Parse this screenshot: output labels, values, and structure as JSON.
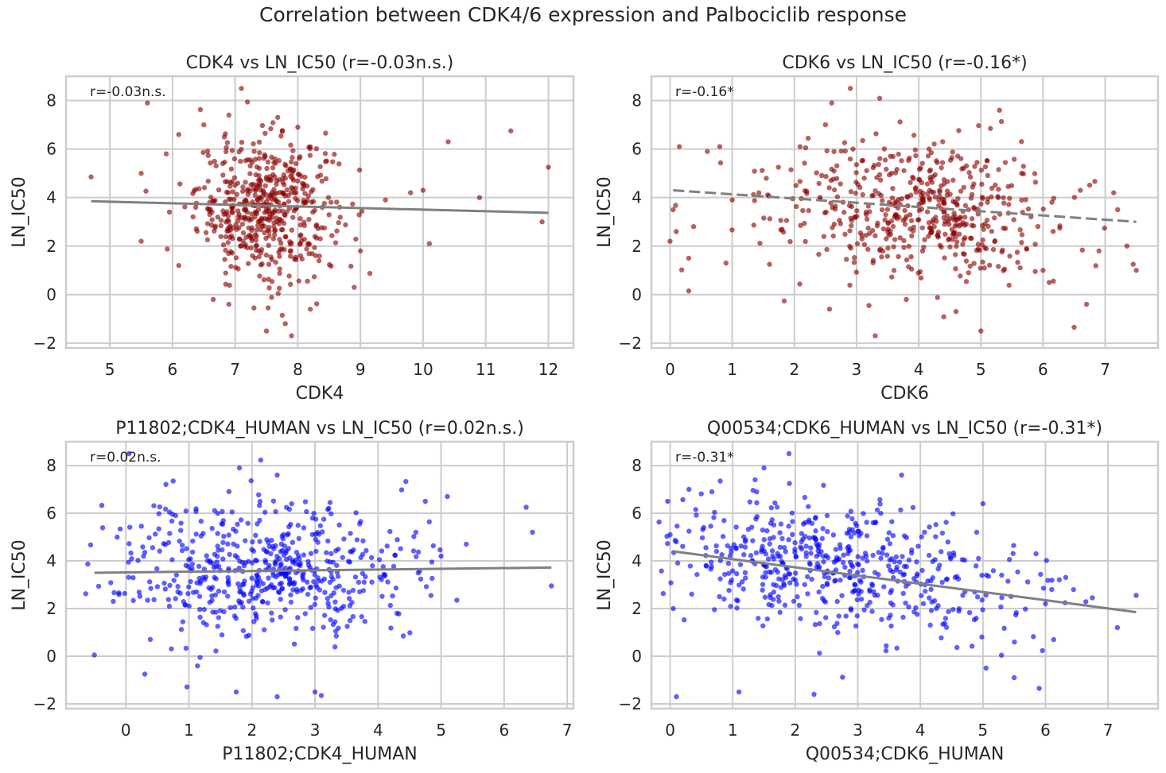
{
  "figure": {
    "suptitle": "Correlation between CDK4/6 expression and Palbociclib response"
  },
  "chart_data": [
    {
      "type": "scatter",
      "title": "CDK4 vs LN_IC50 (r=-0.03n.s.)",
      "annotation": "r=-0.03n.s.",
      "xlabel": "CDK4",
      "ylabel": "LN_IC50",
      "xlim": [
        4.3,
        12.4
      ],
      "ylim": [
        -2.2,
        9.0
      ],
      "xticks": [
        5,
        6,
        7,
        8,
        9,
        10,
        11,
        12
      ],
      "yticks": [
        -2,
        0,
        2,
        4,
        6,
        8
      ],
      "grid": true,
      "point_color": "#8b0000",
      "regression": {
        "x": [
          4.7,
          12.0
        ],
        "y": [
          3.85,
          3.37
        ],
        "color": "#808080"
      },
      "cloud": {
        "cx": 7.5,
        "cy": 3.6,
        "sx": 0.55,
        "sy": 1.45,
        "n": 520,
        "slope": -0.07
      },
      "points": [
        [
          4.7,
          4.85
        ],
        [
          5.6,
          7.9
        ],
        [
          5.5,
          2.2
        ],
        [
          5.5,
          5.0
        ],
        [
          5.9,
          5.8
        ],
        [
          5.95,
          3.4
        ],
        [
          6.1,
          1.2
        ],
        [
          6.1,
          6.6
        ],
        [
          6.5,
          7.0
        ],
        [
          6.65,
          -0.2
        ],
        [
          6.9,
          7.4
        ],
        [
          7.1,
          8.5
        ],
        [
          6.9,
          -0.4
        ],
        [
          7.3,
          -0.55
        ],
        [
          7.5,
          -1.5
        ],
        [
          7.9,
          -1.7
        ],
        [
          7.8,
          -1.2
        ],
        [
          8.2,
          -0.6
        ],
        [
          8.0,
          6.9
        ],
        [
          8.9,
          0.3
        ],
        [
          9.0,
          1.8
        ],
        [
          9.4,
          3.9
        ],
        [
          9.8,
          4.2
        ],
        [
          10.0,
          4.3
        ],
        [
          10.1,
          2.1
        ],
        [
          10.4,
          6.3
        ],
        [
          10.9,
          4.0
        ],
        [
          11.4,
          6.75
        ],
        [
          11.9,
          3.0
        ],
        [
          12.0,
          5.25
        ]
      ]
    },
    {
      "type": "scatter",
      "title": "CDK6 vs LN_IC50 (r=-0.16*)",
      "annotation": "r=-0.16*",
      "xlabel": "CDK6",
      "ylabel": "LN_IC50",
      "xlim": [
        -0.3,
        7.85
      ],
      "ylim": [
        -2.2,
        9.0
      ],
      "xticks": [
        0,
        1,
        2,
        3,
        4,
        5,
        6,
        7
      ],
      "yticks": [
        -2,
        0,
        2,
        4,
        6,
        8
      ],
      "grid": true,
      "point_color": "#8b0000",
      "regression": {
        "x": [
          0.05,
          7.5
        ],
        "y": [
          4.3,
          3.0
        ],
        "color": "#808080",
        "dashed": true
      },
      "cloud": {
        "cx": 3.9,
        "cy": 3.6,
        "sx": 1.15,
        "sy": 1.4,
        "n": 520,
        "slope": -0.17
      },
      "points": [
        [
          0.0,
          2.2
        ],
        [
          0.05,
          3.5
        ],
        [
          0.1,
          2.6
        ],
        [
          0.15,
          6.1
        ],
        [
          0.3,
          0.15
        ],
        [
          0.3,
          1.5
        ],
        [
          0.6,
          5.9
        ],
        [
          0.8,
          6.1
        ],
        [
          0.9,
          1.3
        ],
        [
          1.0,
          3.9
        ],
        [
          1.6,
          1.25
        ],
        [
          2.5,
          7.0
        ],
        [
          2.6,
          7.9
        ],
        [
          2.9,
          8.5
        ],
        [
          3.2,
          -0.45
        ],
        [
          3.3,
          -1.7
        ],
        [
          3.8,
          -0.2
        ],
        [
          4.6,
          -0.7
        ],
        [
          5.0,
          -1.5
        ],
        [
          5.3,
          7.6
        ],
        [
          6.1,
          0.5
        ],
        [
          6.5,
          -1.35
        ],
        [
          6.6,
          4.3
        ],
        [
          6.7,
          -0.4
        ],
        [
          7.2,
          3.5
        ],
        [
          7.45,
          1.25
        ],
        [
          7.5,
          1.0
        ],
        [
          7.35,
          2.0
        ],
        [
          6.9,
          1.8
        ],
        [
          6.0,
          1.0
        ]
      ]
    },
    {
      "type": "scatter",
      "title": "P11802;CDK4_HUMAN vs LN_IC50 (r=0.02n.s.)",
      "annotation": "r=0.02n.s.",
      "xlabel": "P11802;CDK4_HUMAN",
      "ylabel": "LN_IC50",
      "xlim": [
        -0.95,
        7.1
      ],
      "ylim": [
        -2.2,
        9.0
      ],
      "xticks": [
        0,
        1,
        2,
        3,
        4,
        5,
        6,
        7
      ],
      "yticks": [
        -2,
        0,
        2,
        4,
        6,
        8
      ],
      "grid": true,
      "point_color": "#0000ff",
      "regression": {
        "x": [
          -0.5,
          6.75
        ],
        "y": [
          3.5,
          3.72
        ],
        "color": "#808080"
      },
      "cloud": {
        "cx": 2.2,
        "cy": 3.55,
        "sx": 1.2,
        "sy": 1.45,
        "n": 540,
        "slope": 0.03
      },
      "points": [
        [
          -0.5,
          0.05
        ],
        [
          -0.2,
          2.3
        ],
        [
          0.05,
          8.5
        ],
        [
          0.3,
          -0.75
        ],
        [
          0.75,
          7.35
        ],
        [
          1.8,
          7.9
        ],
        [
          1.75,
          -1.5
        ],
        [
          2.4,
          -1.7
        ],
        [
          2.4,
          7.6
        ],
        [
          3.0,
          -1.5
        ],
        [
          3.1,
          -1.65
        ],
        [
          4.4,
          0.85
        ],
        [
          4.75,
          6.5
        ],
        [
          5.1,
          6.7
        ],
        [
          5.0,
          4.2
        ],
        [
          5.25,
          2.35
        ],
        [
          5.4,
          4.7
        ],
        [
          6.35,
          6.25
        ],
        [
          6.45,
          5.2
        ],
        [
          6.75,
          2.95
        ],
        [
          4.3,
          1.8
        ],
        [
          4.6,
          5.2
        ]
      ]
    },
    {
      "type": "scatter",
      "title": "Q00534;CDK6_HUMAN vs LN_IC50 (r=-0.31*)",
      "annotation": "r=-0.31*",
      "xlabel": "Q00534;CDK6_HUMAN",
      "ylabel": "LN_IC50",
      "xlim": [
        -0.3,
        7.8
      ],
      "ylim": [
        -2.2,
        9.0
      ],
      "xticks": [
        0,
        1,
        2,
        3,
        4,
        5,
        6,
        7
      ],
      "yticks": [
        -2,
        0,
        2,
        4,
        6,
        8
      ],
      "grid": true,
      "point_color": "#0000ff",
      "regression": {
        "x": [
          0.05,
          7.45
        ],
        "y": [
          4.4,
          1.85
        ],
        "color": "#808080",
        "dashed_prefix": true
      },
      "cloud": {
        "cx": 2.6,
        "cy": 3.7,
        "sx": 1.45,
        "sy": 1.35,
        "n": 540,
        "slope": -0.38
      },
      "points": [
        [
          0.1,
          -1.7
        ],
        [
          1.1,
          -1.5
        ],
        [
          2.3,
          -1.6
        ],
        [
          1.9,
          8.5
        ],
        [
          0.3,
          7.0
        ],
        [
          0.8,
          7.35
        ],
        [
          1.5,
          7.9
        ],
        [
          3.7,
          7.6
        ],
        [
          5.0,
          6.4
        ],
        [
          5.05,
          -0.5
        ],
        [
          5.5,
          -0.9
        ],
        [
          5.9,
          -1.35
        ],
        [
          5.85,
          4.3
        ],
        [
          6.0,
          2.2
        ],
        [
          6.1,
          2.8
        ],
        [
          6.75,
          2.45
        ],
        [
          7.15,
          1.2
        ],
        [
          7.45,
          2.55
        ],
        [
          5.3,
          3.4
        ],
        [
          4.9,
          5.2
        ],
        [
          0.0,
          5.1
        ],
        [
          0.05,
          2.0
        ]
      ]
    }
  ]
}
